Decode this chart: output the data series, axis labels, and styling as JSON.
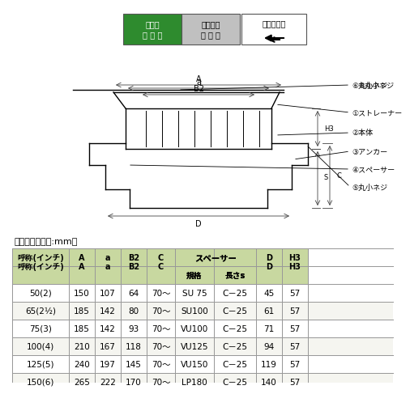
{
  "bg_color": "#ffffff",
  "diagram_bg": "#ffffff",
  "table_header_bg": "#c8d8a0",
  "table_subheader_bg": "#e8e8c8",
  "table_row_bg": "#ffffff",
  "table_alt_bg": "#f5f5f0",
  "table_border_color": "#999999",
  "green_box_bg": "#2e8b2e",
  "gray_box_bg": "#c0c0c0",
  "white_box_bg": "#ffffff",
  "label1_text": "塗　膜\n防 水 用",
  "label2_text": "モルタル\n防 水 用",
  "label3_text": "差し込み式",
  "parts_labels": [
    "①ストレーナー",
    "②本体",
    "③アンカー",
    "④スペーサー",
    "⑤丸小ネジ",
    "⑥丸小ネジ"
  ],
  "table_title": "寸法表　＜単位:mm＞",
  "col_headers": [
    "呼称(インチ)",
    "A",
    "a",
    "B2",
    "C",
    "規格",
    "長さs",
    "D",
    "H3"
  ],
  "spacer_header": "スペーサー",
  "rows": [
    [
      "50(2)",
      "150",
      "107",
      "64",
      "70〜",
      "SU 75",
      "C－25",
      "45",
      "57"
    ],
    [
      "65(2½)",
      "185",
      "142",
      "80",
      "70〜",
      "SU100",
      "C－25",
      "61",
      "57"
    ],
    [
      "75(3)",
      "185",
      "142",
      "93",
      "70〜",
      "VU100",
      "C－25",
      "71",
      "57"
    ],
    [
      "100(4)",
      "210",
      "167",
      "118",
      "70〜",
      "VU125",
      "C－25",
      "94",
      "57"
    ],
    [
      "125(5)",
      "240",
      "197",
      "145",
      "70〜",
      "VU150",
      "C－25",
      "119",
      "57"
    ],
    [
      "150(6)",
      "265",
      "222",
      "170",
      "70〜",
      "LP180",
      "C－25",
      "140",
      "57"
    ]
  ]
}
